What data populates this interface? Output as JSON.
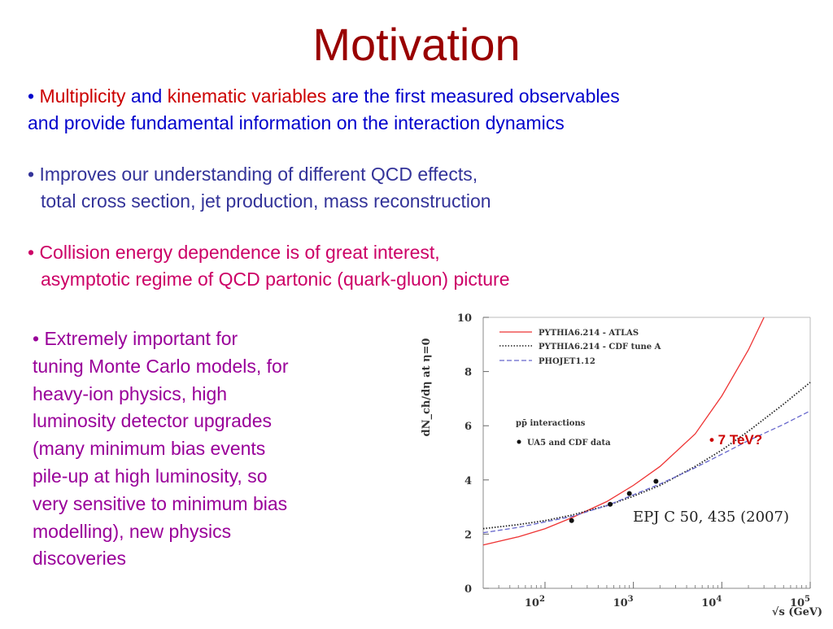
{
  "slide": {
    "title": "Motivation"
  },
  "bullets": {
    "b1": {
      "dot": "• ",
      "w1": "Multiplicity",
      "w2": " and ",
      "w3": "kinematic variables",
      "w4": " are the first measured observables",
      "line2": "and provide fundamental information on the interaction dynamics"
    },
    "b2": {
      "line1": "• Improves our understanding of  different QCD effects,",
      "line2": "total cross section, jet production, mass reconstruction"
    },
    "b3": {
      "line1": "• Collision energy dependence is of great interest,",
      "line2": "asymptotic regime of QCD partonic (quark-gluon) picture"
    },
    "b4": {
      "lines": [
        "• Extremely important for",
        "tuning Monte Carlo models, for",
        "heavy-ion physics, high",
        "luminosity detector upgrades",
        "(many minimum bias events",
        "pile-up at high luminosity, so",
        "very sensitive to minimum bias",
        "modelling), new physics",
        "discoveries"
      ]
    }
  },
  "chart_data": {
    "type": "line",
    "xscale": "log",
    "xlim": [
      20,
      100000
    ],
    "ylim": [
      0,
      10
    ],
    "ylabel": "dN_ch/dη at η=0",
    "xlabel": "√s (GeV)",
    "xticks": [
      "10^2",
      "10^3",
      "10^4",
      "10^5"
    ],
    "yticks": [
      "0",
      "2",
      "4",
      "6",
      "8",
      "10"
    ],
    "series": [
      {
        "name": "PYTHIA6.214 - ATLAS",
        "style": "solid",
        "color": "#ee3333",
        "x": [
          20,
          50,
          100,
          200,
          500,
          1000,
          2000,
          5000,
          10000,
          20000,
          30000
        ],
        "y": [
          1.6,
          1.9,
          2.2,
          2.6,
          3.2,
          3.8,
          4.5,
          5.7,
          7.1,
          8.8,
          10.0
        ]
      },
      {
        "name": "PYTHIA6.214 - CDF tune A",
        "style": "dotted",
        "color": "#222222",
        "x": [
          20,
          50,
          100,
          200,
          500,
          1000,
          2000,
          5000,
          10000,
          20000,
          50000,
          100000
        ],
        "y": [
          2.2,
          2.35,
          2.5,
          2.7,
          3.05,
          3.4,
          3.8,
          4.5,
          5.1,
          5.8,
          6.8,
          7.6
        ]
      },
      {
        "name": "PHOJET1.12",
        "style": "dashed",
        "color": "#6666cc",
        "x": [
          20,
          50,
          100,
          200,
          500,
          1000,
          2000,
          5000,
          10000,
          20000,
          50000,
          100000
        ],
        "y": [
          2.05,
          2.25,
          2.45,
          2.65,
          3.05,
          3.45,
          3.85,
          4.45,
          4.95,
          5.45,
          6.05,
          6.55
        ]
      }
    ],
    "points": {
      "name": "UA5 and CDF data",
      "x": [
        200,
        546,
        900,
        1800
      ],
      "y": [
        2.5,
        3.1,
        3.5,
        3.95
      ]
    },
    "annotations": {
      "interactions": "pp̄ interactions",
      "reference": "EPJ C 50, 435 (2007)",
      "marker": "• 7 TeV?"
    },
    "colors": {
      "marker": "#cc0000"
    }
  }
}
